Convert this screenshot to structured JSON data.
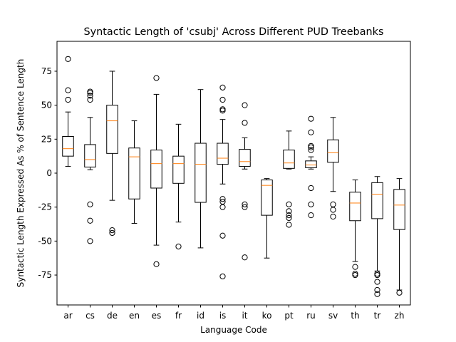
{
  "chart_data": {
    "type": "boxplot",
    "title": "Syntactic Length of 'csubj' Across Different PUD Treebanks",
    "xlabel": "Language Code",
    "ylabel": "Syntactic Length Expressed As % of Sentence Length",
    "ylim": [
      -97,
      97
    ],
    "yticks": [
      -75,
      -50,
      -25,
      0,
      25,
      50,
      75
    ],
    "grid": false,
    "colors": {
      "box": "#000000",
      "median": "#ff7f0e",
      "flier": "#000000"
    },
    "categories": [
      "ar",
      "cs",
      "de",
      "en",
      "es",
      "fr",
      "id",
      "is",
      "it",
      "ko",
      "pt",
      "ru",
      "sv",
      "th",
      "tr",
      "zh"
    ],
    "boxes": [
      {
        "label": "ar",
        "whislo": 5,
        "q1": 12.5,
        "med": 18,
        "q3": 27,
        "whishi": 45,
        "fliers": [
          54,
          61,
          84
        ]
      },
      {
        "label": "cs",
        "whislo": 2.5,
        "q1": 4.5,
        "med": 10,
        "q3": 21,
        "whishi": 41,
        "fliers": [
          54,
          57,
          59,
          60,
          -23,
          -35,
          -50
        ]
      },
      {
        "label": "de",
        "whislo": -20,
        "q1": 14.5,
        "med": 38.5,
        "q3": 50,
        "whishi": 75,
        "fliers": [
          -42,
          -44
        ]
      },
      {
        "label": "en",
        "whislo": -37,
        "q1": -19,
        "med": 12,
        "q3": 18.5,
        "whishi": 38.5,
        "fliers": []
      },
      {
        "label": "es",
        "whislo": -53,
        "q1": -11,
        "med": 7,
        "q3": 17,
        "whishi": 58,
        "fliers": [
          70,
          -67
        ]
      },
      {
        "label": "fr",
        "whislo": -36,
        "q1": -7.5,
        "med": 7,
        "q3": 12.5,
        "whishi": 36,
        "fliers": [
          -54
        ]
      },
      {
        "label": "id",
        "whislo": -55,
        "q1": -21.5,
        "med": 6.5,
        "q3": 22,
        "whishi": 61.5,
        "fliers": []
      },
      {
        "label": "is",
        "whislo": -8,
        "q1": 6.5,
        "med": 11,
        "q3": 22,
        "whishi": 39.5,
        "fliers": [
          46,
          47,
          54,
          63,
          -19,
          -21,
          -25,
          -46,
          -76
        ]
      },
      {
        "label": "it",
        "whislo": 3,
        "q1": 5,
        "med": 8.5,
        "q3": 17.5,
        "whishi": 26,
        "fliers": [
          37,
          50,
          -23,
          -25,
          -62
        ]
      },
      {
        "label": "ko",
        "whislo": -62.5,
        "q1": -31,
        "med": -9,
        "q3": -5,
        "whishi": -4,
        "fliers": []
      },
      {
        "label": "pt",
        "whislo": 3,
        "q1": 3.5,
        "med": 7.5,
        "q3": 17,
        "whishi": 31,
        "fliers": [
          -23,
          -28,
          -31,
          -33,
          -38
        ]
      },
      {
        "label": "ru",
        "whislo": 3,
        "q1": 4,
        "med": 6,
        "q3": 9,
        "whishi": 12,
        "fliers": [
          17,
          19,
          20,
          30,
          40,
          -11,
          -23,
          -31
        ]
      },
      {
        "label": "sv",
        "whislo": -13.5,
        "q1": 8,
        "med": 15,
        "q3": 24.5,
        "whishi": 41,
        "fliers": [
          -23,
          -27,
          -32
        ]
      },
      {
        "label": "th",
        "whislo": -65,
        "q1": -35,
        "med": -22,
        "q3": -14,
        "whishi": -5,
        "fliers": [
          -69,
          -74,
          -75
        ]
      },
      {
        "label": "tr",
        "whislo": -72,
        "q1": -33.5,
        "med": -15.5,
        "q3": -7,
        "whishi": -2.5,
        "fliers": [
          -74,
          -75,
          -80,
          -86,
          -89
        ]
      },
      {
        "label": "zh",
        "whislo": -86,
        "q1": -41.5,
        "med": -23.5,
        "q3": -12,
        "whishi": -4,
        "fliers": [
          -88
        ]
      }
    ]
  }
}
